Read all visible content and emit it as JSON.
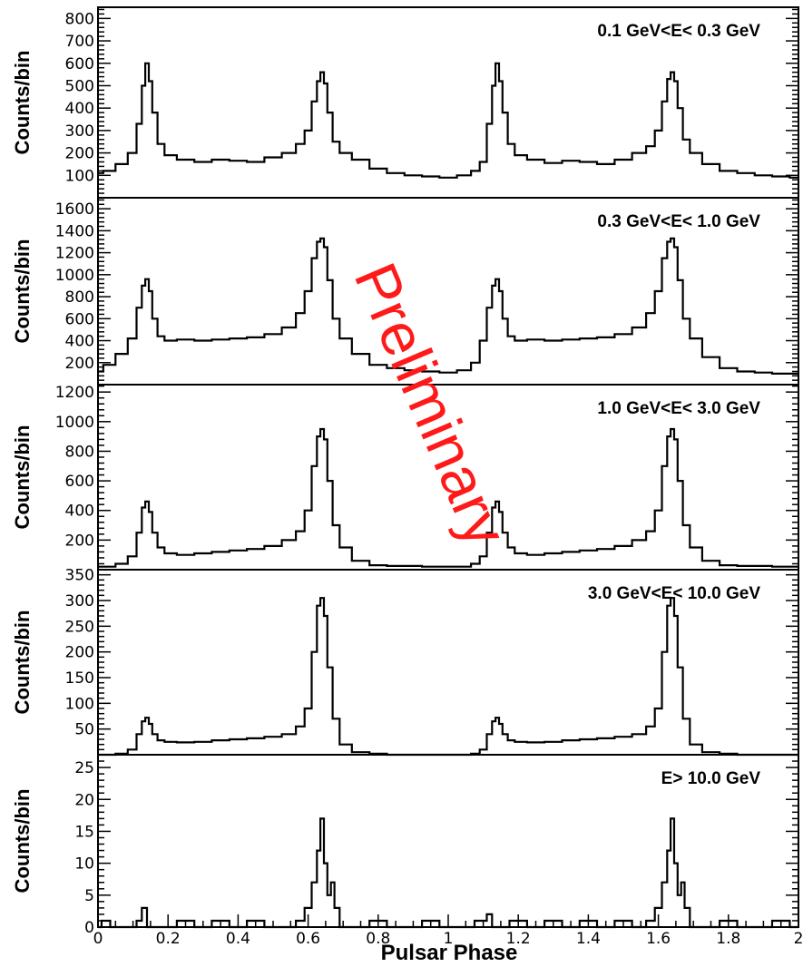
{
  "chart_data": [
    {
      "type": "line",
      "title": "0.1 GeV<E< 0.3 GeV",
      "ylabel": "Counts/bin",
      "ylim": [
        0,
        850
      ],
      "yticks": [
        100,
        200,
        300,
        400,
        500,
        600,
        700,
        800
      ],
      "series": [
        {
          "x": [
            0,
            0.03,
            0.07,
            0.1,
            0.12,
            0.13,
            0.14,
            0.15,
            0.16,
            0.18,
            0.2,
            0.25,
            0.3,
            0.35,
            0.4,
            0.45,
            0.5,
            0.55,
            0.58,
            0.6,
            0.62,
            0.63,
            0.64,
            0.65,
            0.66,
            0.68,
            0.7,
            0.75,
            0.8,
            0.85,
            0.9,
            0.95,
            1.0,
            1.05,
            1.08,
            1.1,
            1.12,
            1.13,
            1.14,
            1.15,
            1.16,
            1.18,
            1.2,
            1.25,
            1.3,
            1.35,
            1.4,
            1.45,
            1.5,
            1.55,
            1.58,
            1.6,
            1.62,
            1.63,
            1.64,
            1.65,
            1.66,
            1.68,
            1.7,
            1.75,
            1.8,
            1.85,
            1.9,
            1.95,
            2.0
          ],
          "y": [
            110,
            120,
            150,
            200,
            330,
            500,
            600,
            520,
            380,
            240,
            190,
            170,
            160,
            170,
            165,
            160,
            180,
            200,
            240,
            300,
            430,
            520,
            560,
            510,
            380,
            250,
            200,
            170,
            130,
            110,
            100,
            95,
            90,
            100,
            120,
            160,
            330,
            500,
            600,
            520,
            380,
            240,
            190,
            170,
            155,
            165,
            160,
            150,
            170,
            200,
            230,
            300,
            430,
            530,
            560,
            520,
            400,
            260,
            200,
            150,
            120,
            110,
            100,
            95,
            90
          ]
        }
      ]
    },
    {
      "type": "line",
      "title": "0.3 GeV<E< 1.0 GeV",
      "ylabel": "Counts/bin",
      "ylim": [
        0,
        1700
      ],
      "yticks": [
        200,
        400,
        600,
        800,
        1000,
        1200,
        1400,
        1600
      ],
      "series": [
        {
          "x": [
            0,
            0.03,
            0.07,
            0.1,
            0.12,
            0.13,
            0.14,
            0.15,
            0.16,
            0.18,
            0.2,
            0.25,
            0.3,
            0.35,
            0.4,
            0.45,
            0.5,
            0.55,
            0.58,
            0.6,
            0.62,
            0.63,
            0.64,
            0.65,
            0.66,
            0.68,
            0.7,
            0.75,
            0.8,
            0.85,
            0.9,
            0.95,
            1.0,
            1.05,
            1.08,
            1.1,
            1.12,
            1.13,
            1.14,
            1.15,
            1.16,
            1.18,
            1.2,
            1.25,
            1.3,
            1.35,
            1.4,
            1.45,
            1.5,
            1.55,
            1.58,
            1.6,
            1.62,
            1.63,
            1.64,
            1.65,
            1.66,
            1.68,
            1.7,
            1.75,
            1.8,
            1.85,
            1.9,
            1.95,
            2.0
          ],
          "y": [
            120,
            180,
            280,
            420,
            700,
            900,
            960,
            850,
            600,
            440,
            400,
            410,
            400,
            410,
            420,
            430,
            460,
            520,
            650,
            850,
            1150,
            1300,
            1330,
            1250,
            950,
            600,
            420,
            280,
            180,
            150,
            130,
            120,
            110,
            130,
            200,
            400,
            700,
            900,
            960,
            850,
            600,
            440,
            400,
            410,
            400,
            410,
            420,
            430,
            460,
            520,
            650,
            850,
            1150,
            1300,
            1330,
            1250,
            950,
            600,
            420,
            250,
            150,
            120,
            110,
            100,
            100
          ]
        }
      ]
    },
    {
      "type": "line",
      "title": "1.0 GeV<E< 3.0 GeV",
      "ylabel": "Counts/bin",
      "ylim": [
        0,
        1250
      ],
      "yticks": [
        200,
        400,
        600,
        800,
        1000,
        1200
      ],
      "series": [
        {
          "x": [
            0,
            0.03,
            0.07,
            0.1,
            0.12,
            0.13,
            0.14,
            0.15,
            0.16,
            0.18,
            0.2,
            0.25,
            0.3,
            0.35,
            0.4,
            0.45,
            0.5,
            0.55,
            0.58,
            0.6,
            0.62,
            0.63,
            0.64,
            0.65,
            0.66,
            0.68,
            0.7,
            0.75,
            0.8,
            0.85,
            0.9,
            0.95,
            1.0,
            1.05,
            1.08,
            1.1,
            1.12,
            1.13,
            1.14,
            1.15,
            1.16,
            1.18,
            1.2,
            1.25,
            1.3,
            1.35,
            1.4,
            1.45,
            1.5,
            1.55,
            1.58,
            1.6,
            1.62,
            1.63,
            1.64,
            1.65,
            1.66,
            1.68,
            1.7,
            1.75,
            1.8,
            1.85,
            1.9,
            1.95,
            2.0
          ],
          "y": [
            20,
            20,
            40,
            90,
            250,
            420,
            460,
            390,
            250,
            150,
            110,
            100,
            110,
            120,
            130,
            140,
            160,
            200,
            260,
            400,
            700,
            900,
            950,
            880,
            600,
            300,
            150,
            60,
            30,
            25,
            25,
            20,
            20,
            20,
            40,
            90,
            250,
            420,
            460,
            390,
            250,
            150,
            110,
            100,
            110,
            120,
            130,
            140,
            160,
            200,
            260,
            400,
            700,
            900,
            950,
            880,
            600,
            300,
            150,
            60,
            30,
            25,
            25,
            20,
            20
          ]
        }
      ]
    },
    {
      "type": "line",
      "title": "3.0 GeV<E< 10.0 GeV",
      "ylabel": "Counts/bin",
      "ylim": [
        0,
        360
      ],
      "yticks": [
        50,
        100,
        150,
        200,
        250,
        300,
        350
      ],
      "series": [
        {
          "x": [
            0,
            0.03,
            0.07,
            0.1,
            0.12,
            0.13,
            0.14,
            0.15,
            0.16,
            0.18,
            0.2,
            0.25,
            0.3,
            0.35,
            0.4,
            0.45,
            0.5,
            0.55,
            0.58,
            0.6,
            0.62,
            0.63,
            0.64,
            0.65,
            0.66,
            0.68,
            0.7,
            0.75,
            0.8,
            0.85,
            0.9,
            0.95,
            1.0,
            1.05,
            1.08,
            1.1,
            1.12,
            1.13,
            1.14,
            1.15,
            1.16,
            1.18,
            1.2,
            1.25,
            1.3,
            1.35,
            1.4,
            1.45,
            1.5,
            1.55,
            1.58,
            1.6,
            1.62,
            1.63,
            1.64,
            1.65,
            1.66,
            1.68,
            1.7,
            1.75,
            1.8,
            1.85,
            1.9,
            1.95,
            2.0
          ],
          "y": [
            0,
            0,
            2,
            10,
            40,
            65,
            72,
            60,
            40,
            28,
            25,
            24,
            25,
            28,
            30,
            32,
            35,
            40,
            55,
            90,
            200,
            290,
            305,
            270,
            170,
            70,
            20,
            5,
            2,
            0,
            0,
            0,
            0,
            0,
            2,
            10,
            40,
            65,
            72,
            60,
            40,
            28,
            25,
            24,
            25,
            28,
            30,
            32,
            35,
            40,
            55,
            90,
            200,
            290,
            305,
            270,
            170,
            70,
            20,
            5,
            2,
            0,
            0,
            0,
            0
          ]
        }
      ]
    },
    {
      "type": "line",
      "title": "E> 10.0 GeV",
      "ylabel": "Counts/bin",
      "xlabel": "Pulsar Phase",
      "ylim": [
        0,
        27
      ],
      "yticks": [
        0,
        5,
        10,
        15,
        20,
        25
      ],
      "xticks": [
        0,
        0.2,
        0.4,
        0.6,
        0.8,
        1,
        1.2,
        1.4,
        1.6,
        1.8,
        2
      ],
      "series": [
        {
          "x": [
            0,
            0.02,
            0.05,
            0.1,
            0.12,
            0.13,
            0.15,
            0.2,
            0.25,
            0.3,
            0.35,
            0.4,
            0.45,
            0.5,
            0.55,
            0.58,
            0.6,
            0.62,
            0.63,
            0.64,
            0.65,
            0.66,
            0.67,
            0.68,
            0.7,
            0.75,
            0.8,
            0.85,
            0.9,
            0.95,
            1.0,
            1.05,
            1.1,
            1.12,
            1.13,
            1.15,
            1.2,
            1.25,
            1.3,
            1.35,
            1.4,
            1.45,
            1.5,
            1.55,
            1.58,
            1.6,
            1.62,
            1.63,
            1.64,
            1.65,
            1.66,
            1.67,
            1.68,
            1.7,
            1.75,
            1.8,
            1.85,
            1.9,
            1.95,
            2.0
          ],
          "y": [
            0,
            1,
            0,
            0,
            1,
            3,
            0,
            0,
            1,
            0,
            1,
            0,
            1,
            0,
            0,
            1,
            3,
            7,
            12,
            17,
            10,
            5,
            7,
            3,
            0,
            0,
            1,
            0,
            0,
            1,
            0,
            0,
            1,
            2,
            0,
            0,
            1,
            0,
            1,
            0,
            1,
            0,
            1,
            0,
            1,
            3,
            7,
            12,
            17,
            10,
            5,
            7,
            3,
            0,
            0,
            1,
            0,
            0,
            1,
            0
          ]
        }
      ]
    }
  ],
  "xlim": [
    0,
    2
  ],
  "xtick_labels": [
    "0",
    "0.2",
    "0.4",
    "0.6",
    "0.8",
    "1",
    "1.2",
    "1.4",
    "1.6",
    "1.8",
    "2"
  ],
  "watermark": "Preliminary",
  "colors": {
    "line": "#000000",
    "watermark": "#ff1a1a"
  }
}
